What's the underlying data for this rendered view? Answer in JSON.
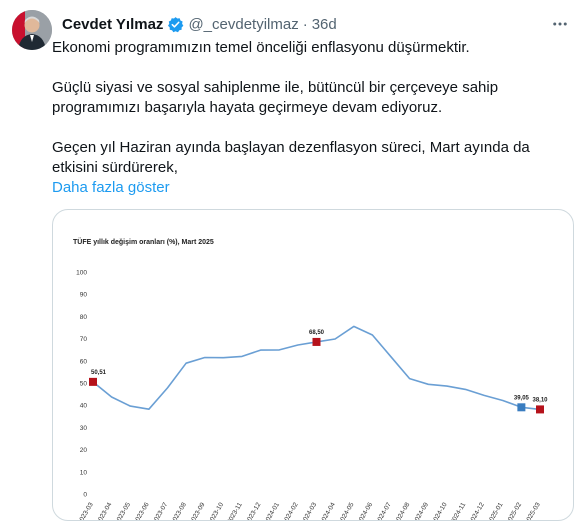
{
  "tweet": {
    "author_name": "Cevdet Yılmaz",
    "handle": "@_cevdetyilmaz",
    "separator": "·",
    "time": "36d",
    "paragraphs": [
      "Ekonomi programımızın temel önceliği enflasyonu düşürmektir.",
      "Güçlü siyasi ve sosyal sahiplenme ile, bütüncül bir çerçeveye sahip programımızı başarıyla hayata geçirmeye devam ediyoruz.",
      "Geçen yıl Haziran ayında başlayan dezenflasyon süreci, Mart ayında da etkisini sürdürerek,"
    ],
    "show_more": "Daha fazla göster",
    "verified_color": "#1d9bf0",
    "icons": {
      "verified": "verified-badge-icon",
      "more": "more-horizontal-icon"
    }
  },
  "chart_data": {
    "type": "line",
    "title": "TÜFE yıllık değişim oranları (%), Mart 2025",
    "ylim": [
      0,
      100
    ],
    "yticks": [
      0,
      10,
      20,
      30,
      40,
      50,
      60,
      70,
      80,
      90,
      100
    ],
    "grid": false,
    "line_color": "#6a9fd4",
    "x": [
      "2023-03",
      "2023-04",
      "2023-05",
      "2023-06",
      "2023-07",
      "2023-08",
      "2023-09",
      "2023-10",
      "2023-11",
      "2023-12",
      "2024-01",
      "2024-02",
      "2024-03",
      "2024-04",
      "2024-05",
      "2024-06",
      "2024-07",
      "2024-08",
      "2024-09",
      "2024-10",
      "2024-11",
      "2024-12",
      "2025-01",
      "2025-02",
      "2025-03"
    ],
    "values": [
      50.51,
      43.7,
      39.6,
      38.2,
      47.8,
      58.9,
      61.5,
      61.4,
      62.0,
      64.8,
      64.9,
      67.1,
      68.5,
      69.8,
      75.5,
      71.6,
      61.8,
      52.0,
      49.4,
      48.6,
      47.1,
      44.4,
      42.1,
      39.05,
      38.1
    ],
    "highlights": [
      {
        "index": 0,
        "label": "50,51",
        "color": "#b5121b"
      },
      {
        "index": 12,
        "label": "68,50",
        "color": "#b5121b"
      },
      {
        "index": 23,
        "label": "39,05",
        "color": "#3a7dc0"
      },
      {
        "index": 24,
        "label": "38,10",
        "color": "#b5121b"
      }
    ]
  }
}
